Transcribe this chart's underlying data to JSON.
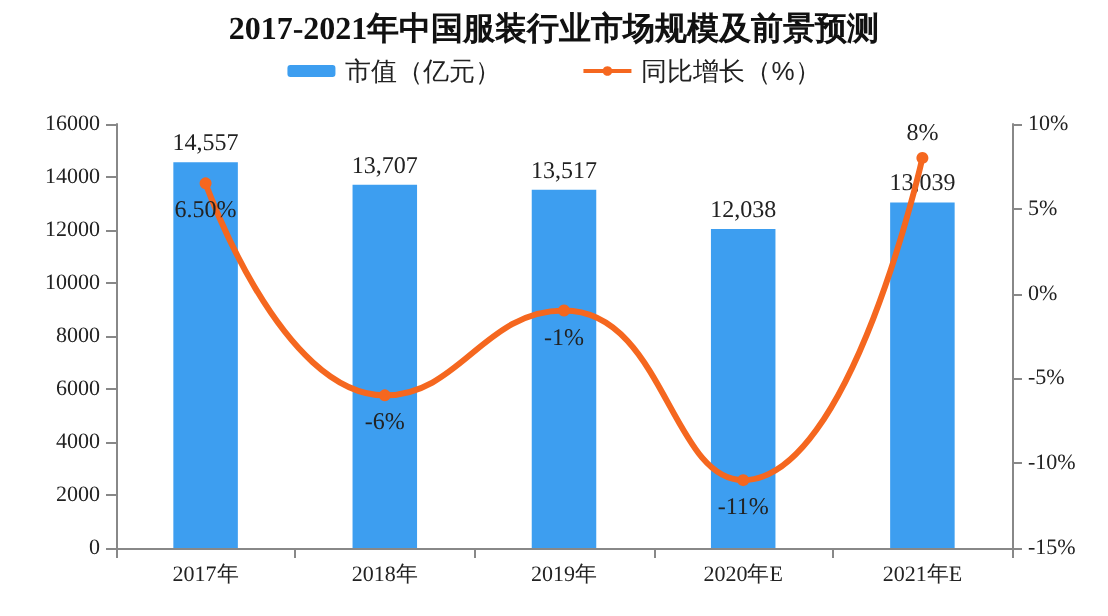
{
  "chart_data": {
    "type": "bar",
    "title": "2017-2021年中国服装行业市场规模及前景预测",
    "categories": [
      "2017年",
      "2018年",
      "2019年",
      "2020年E",
      "2021年E"
    ],
    "series": [
      {
        "name": "市值（亿元）",
        "color": "#3d9ef0",
        "values": [
          14557,
          13707,
          13517,
          12038,
          13039
        ],
        "value_labels": [
          "14,557",
          "13,707",
          "13,517",
          "12,038",
          "13,039"
        ]
      },
      {
        "name": "同比增长（%）",
        "type": "line",
        "axis": "y2",
        "color": "#f5671f",
        "values": [
          6.5,
          -6,
          -1,
          -11,
          8
        ],
        "value_labels": [
          "6.50%",
          "-6%",
          "-1%",
          "-11%",
          "8%"
        ]
      }
    ],
    "ylim": [
      0,
      16000
    ],
    "yticks": [
      0,
      2000,
      4000,
      6000,
      8000,
      10000,
      12000,
      14000,
      16000
    ],
    "y2lim": [
      -15,
      10
    ],
    "y2ticks": [
      {
        "value": -15,
        "label": "-15%"
      },
      {
        "value": -10,
        "label": "-10%"
      },
      {
        "value": -5,
        "label": "-5%"
      },
      {
        "value": 0,
        "label": "0%"
      },
      {
        "value": 5,
        "label": "5%"
      },
      {
        "value": 10,
        "label": "10%"
      }
    ],
    "legend": "top",
    "grid": false,
    "marker": "circle",
    "line_style": "solid"
  }
}
